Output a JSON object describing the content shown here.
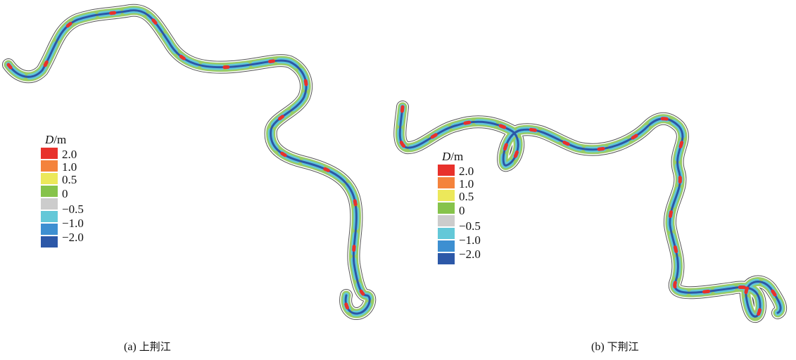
{
  "legend_title": "D",
  "legend_unit": "/m",
  "legend": [
    {
      "label": "2.0",
      "color": "#e8312b"
    },
    {
      "label": "1.0",
      "color": "#f4833c"
    },
    {
      "label": "0.5",
      "color": "#ece85a"
    },
    {
      "label": "",
      "color": "#86c34b"
    },
    {
      "label": "0",
      "color": "#cccccc"
    },
    {
      "label": "−0.5",
      "color": "#63c8d8"
    },
    {
      "label": "−1.0",
      "color": "#3d8fd1"
    },
    {
      "label": "−2.0",
      "color": "#2c58a8"
    }
  ],
  "panel_a": {
    "caption_prefix": "(a)",
    "caption_name": "上荆江"
  },
  "panel_b": {
    "caption_prefix": "(b)",
    "caption_name": "下荆江"
  }
}
